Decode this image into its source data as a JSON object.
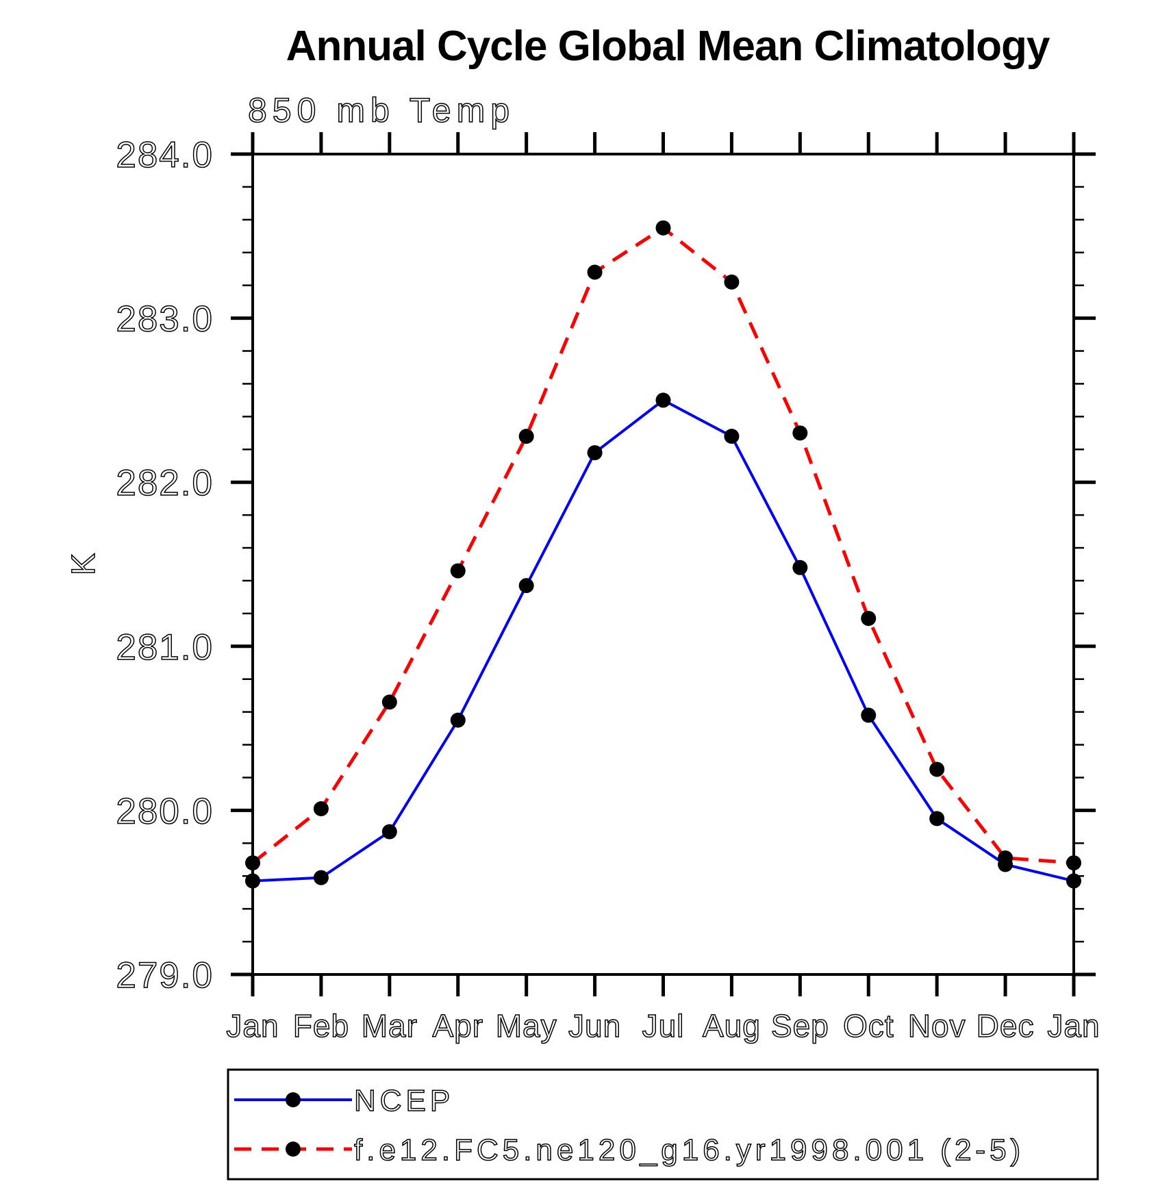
{
  "chart": {
    "title": "Annual Cycle Global Mean Climatology",
    "subtitle": "850 mb Temp",
    "ylabel": "K"
  },
  "chart_data": {
    "type": "line",
    "title": "Annual Cycle Global Mean Climatology",
    "subtitle": "850 mb Temp",
    "xlabel": "",
    "ylabel": "K",
    "categories": [
      "Jan",
      "Feb",
      "Mar",
      "Apr",
      "May",
      "Jun",
      "Jul",
      "Aug",
      "Sep",
      "Oct",
      "Nov",
      "Dec",
      "Jan"
    ],
    "ylim": [
      279.0,
      284.0
    ],
    "y_tick_labels": [
      "279.0",
      "280.0",
      "281.0",
      "282.0",
      "283.0",
      "284.0"
    ],
    "y_major_step": 1.0,
    "y_minor_step": 0.2,
    "grid": false,
    "legend_position": "bottom-left-box",
    "marker": "filled-circle",
    "marker_color": "#000000",
    "series": [
      {
        "name": "NCEP",
        "color": "#0000ff",
        "line": "solid",
        "values": [
          279.57,
          279.59,
          279.87,
          280.55,
          281.37,
          282.18,
          282.5,
          282.28,
          281.48,
          280.58,
          279.95,
          279.67,
          279.57
        ]
      },
      {
        "name": "f.e12.FC5.ne120_g16.yr1998.001 (2-5)",
        "color": "#ff0000",
        "line": "dashed",
        "values": [
          279.68,
          280.01,
          280.66,
          281.46,
          282.28,
          283.28,
          283.55,
          283.22,
          282.3,
          281.17,
          280.25,
          279.71,
          279.68
        ]
      }
    ]
  }
}
